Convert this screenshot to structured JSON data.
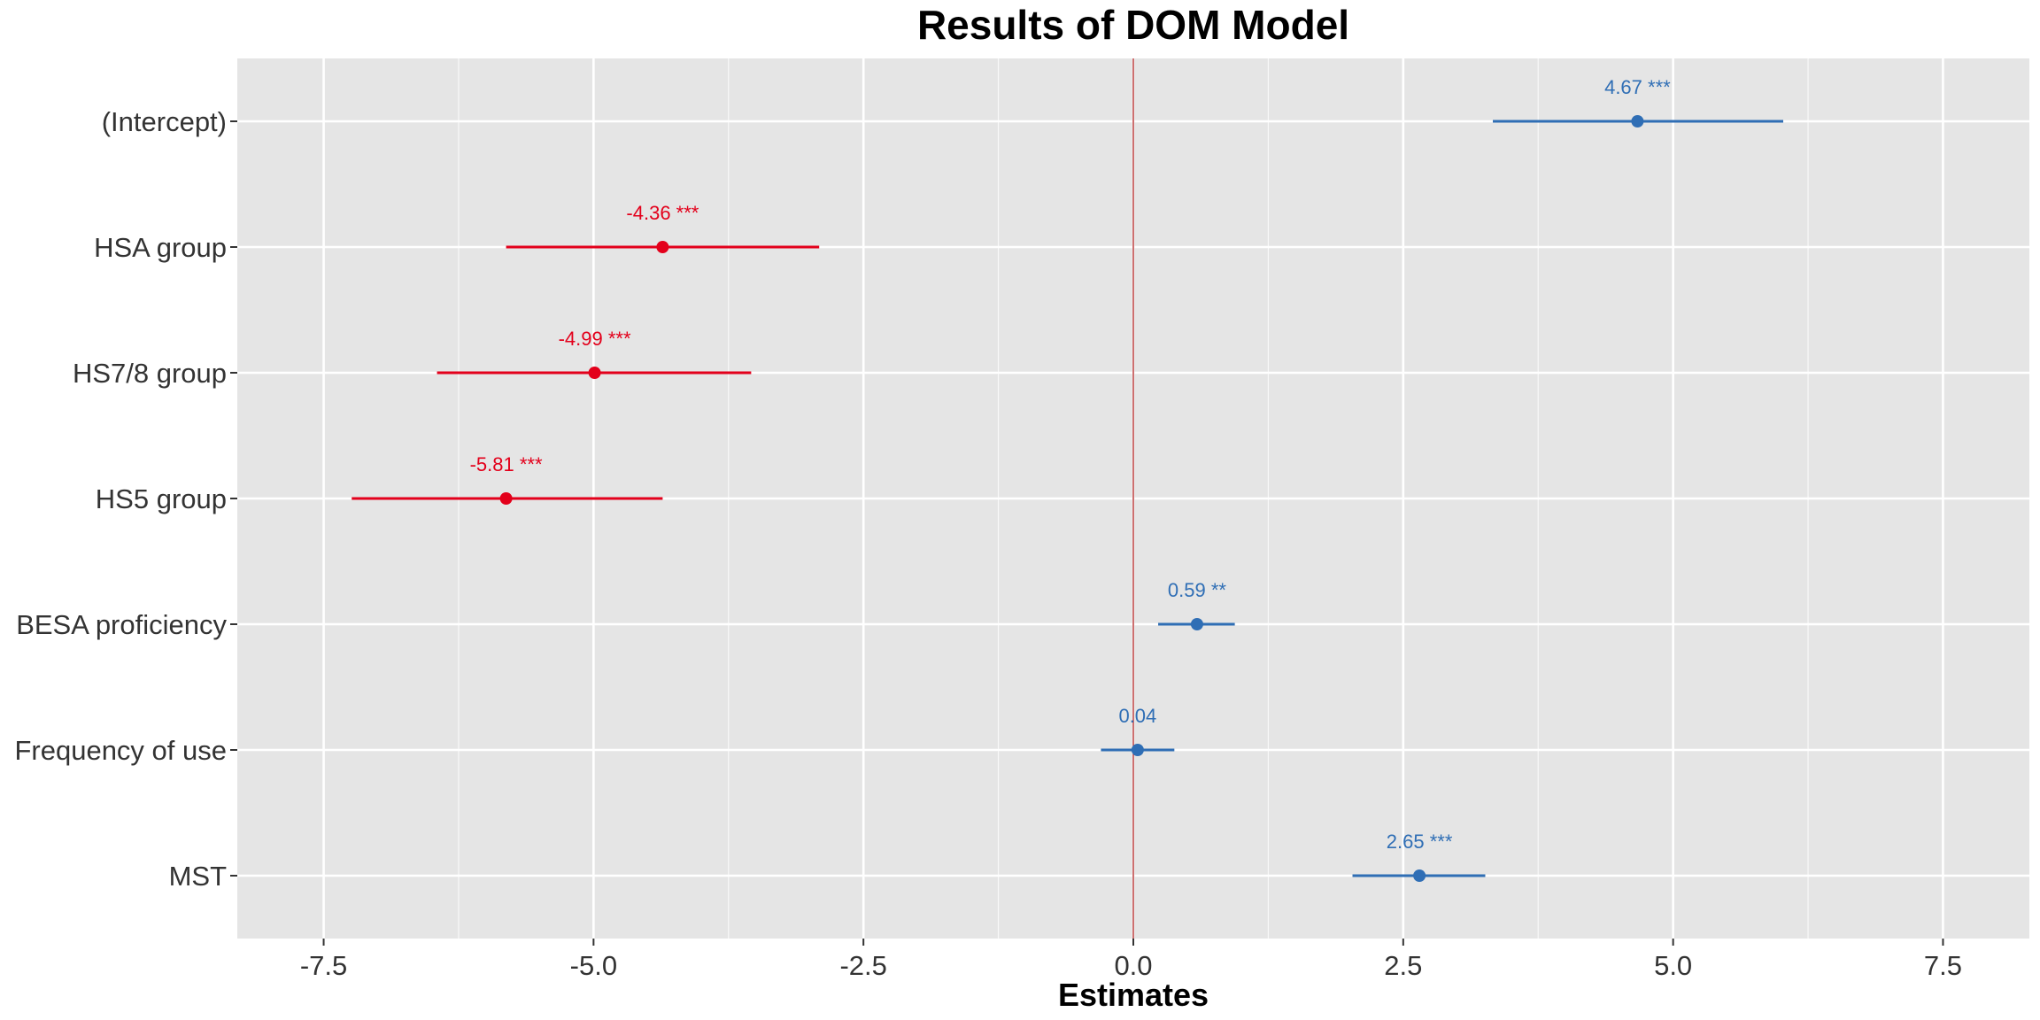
{
  "chart_data": {
    "type": "scatter",
    "title": "Results of DOM Model",
    "xlabel": "Estimates",
    "ylabel": "",
    "xlim": [
      -8.3,
      8.3
    ],
    "x_ticks": [
      -7.5,
      -5.0,
      -2.5,
      0.0,
      2.5,
      5.0,
      7.5
    ],
    "x_tick_labels": [
      "-7.5",
      "-5.0",
      "-2.5",
      "0.0",
      "2.5",
      "5.0",
      "7.5"
    ],
    "reference_line": 0,
    "grid": true,
    "colors": {
      "positive": "#2f6eb5",
      "negative": "#e3001b",
      "panel": "#e5e5e5",
      "grid": "#ffffff",
      "reference": "#b22222"
    },
    "terms": [
      {
        "name": "(Intercept)",
        "estimate": 4.67,
        "ci_low": 3.33,
        "ci_high": 6.02,
        "label": "4.67 ***"
      },
      {
        "name": "HSA group",
        "estimate": -4.36,
        "ci_low": -5.81,
        "ci_high": -2.91,
        "label": "-4.36 ***"
      },
      {
        "name": "HS7/8 group",
        "estimate": -4.99,
        "ci_low": -6.45,
        "ci_high": -3.54,
        "label": "-4.99 ***"
      },
      {
        "name": "HS5 group",
        "estimate": -5.81,
        "ci_low": -7.24,
        "ci_high": -4.36,
        "label": "-5.81 ***"
      },
      {
        "name": "BESA proficiency",
        "estimate": 0.59,
        "ci_low": 0.23,
        "ci_high": 0.94,
        "label": "0.59 **"
      },
      {
        "name": "Frequency of use",
        "estimate": 0.04,
        "ci_low": -0.3,
        "ci_high": 0.38,
        "label": "0.04"
      },
      {
        "name": "MST",
        "estimate": 2.65,
        "ci_low": 2.03,
        "ci_high": 3.26,
        "label": "2.65 ***"
      }
    ]
  }
}
